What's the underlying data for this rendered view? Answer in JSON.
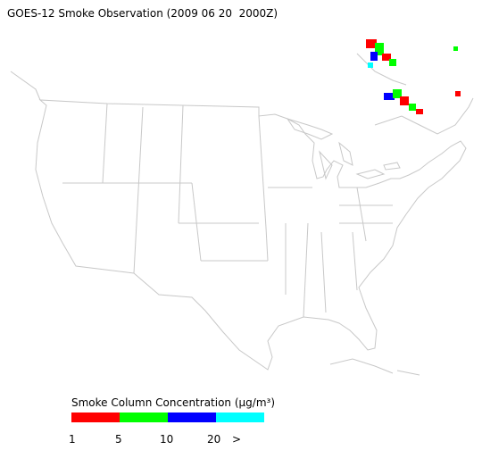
{
  "title": "GOES-12 Smoke Observation (2009 06 20  2000Z)",
  "legend": {
    "title": "Smoke Column Concentration (μg/m³)",
    "colors": [
      "#ff0000",
      "#00ff00",
      "#0000ff",
      "#00ffff"
    ],
    "labels": [
      "1",
      "5",
      "10",
      "20",
      ">"
    ]
  }
}
